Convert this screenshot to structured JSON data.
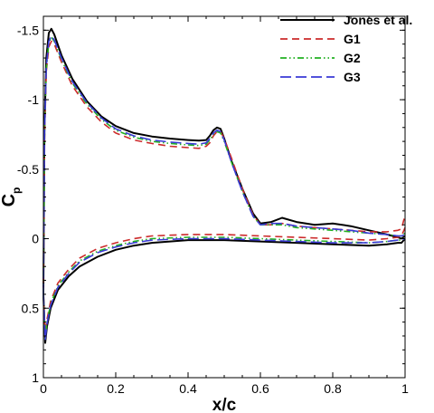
{
  "chart_data": {
    "type": "line",
    "title": "",
    "xlabel": "x/c",
    "ylabel": "C",
    "ylabel_subscript": "p",
    "xlim": [
      0,
      1
    ],
    "ylim": [
      1,
      -1.6
    ],
    "y_inverted": true,
    "grid": false,
    "legend_position": "top-right",
    "x_ticks": [
      {
        "value": 0,
        "label": "0"
      },
      {
        "value": 0.2,
        "label": "0.2"
      },
      {
        "value": 0.4,
        "label": "0.4"
      },
      {
        "value": 0.6,
        "label": "0.6"
      },
      {
        "value": 0.8,
        "label": "0.8"
      },
      {
        "value": 1,
        "label": "1"
      }
    ],
    "y_ticks": [
      {
        "value": -1.5,
        "label": "-1.5"
      },
      {
        "value": -1,
        "label": "-1"
      },
      {
        "value": -0.5,
        "label": "-0.5"
      },
      {
        "value": 0,
        "label": "0"
      },
      {
        "value": 0.5,
        "label": "0.5"
      },
      {
        "value": 1,
        "label": "1"
      }
    ],
    "series": [
      {
        "name": "Jones et al.",
        "color": "#000000",
        "dash": "solid",
        "upper": [
          [
            0,
            0.4
          ],
          [
            0.003,
            -0.8
          ],
          [
            0.008,
            -1.3
          ],
          [
            0.015,
            -1.48
          ],
          [
            0.022,
            -1.51
          ],
          [
            0.03,
            -1.47
          ],
          [
            0.05,
            -1.32
          ],
          [
            0.08,
            -1.15
          ],
          [
            0.12,
            -0.99
          ],
          [
            0.16,
            -0.88
          ],
          [
            0.2,
            -0.81
          ],
          [
            0.25,
            -0.76
          ],
          [
            0.3,
            -0.735
          ],
          [
            0.35,
            -0.72
          ],
          [
            0.4,
            -0.71
          ],
          [
            0.43,
            -0.705
          ],
          [
            0.45,
            -0.71
          ],
          [
            0.46,
            -0.74
          ],
          [
            0.47,
            -0.78
          ],
          [
            0.48,
            -0.8
          ],
          [
            0.49,
            -0.79
          ],
          [
            0.5,
            -0.72
          ],
          [
            0.52,
            -0.56
          ],
          [
            0.55,
            -0.36
          ],
          [
            0.58,
            -0.18
          ],
          [
            0.6,
            -0.11
          ],
          [
            0.63,
            -0.12
          ],
          [
            0.66,
            -0.15
          ],
          [
            0.7,
            -0.12
          ],
          [
            0.75,
            -0.1
          ],
          [
            0.8,
            -0.11
          ],
          [
            0.85,
            -0.09
          ],
          [
            0.9,
            -0.06
          ],
          [
            0.95,
            -0.03
          ],
          [
            0.98,
            -0.01
          ],
          [
            0.99,
            0.0
          ],
          [
            1.0,
            -0.02
          ]
        ],
        "lower": [
          [
            0,
            0.4
          ],
          [
            0.005,
            0.75
          ],
          [
            0.01,
            0.63
          ],
          [
            0.02,
            0.5
          ],
          [
            0.04,
            0.37
          ],
          [
            0.07,
            0.27
          ],
          [
            0.1,
            0.2
          ],
          [
            0.15,
            0.13
          ],
          [
            0.2,
            0.08
          ],
          [
            0.25,
            0.05
          ],
          [
            0.3,
            0.03
          ],
          [
            0.4,
            0.01
          ],
          [
            0.5,
            0.01
          ],
          [
            0.6,
            0.02
          ],
          [
            0.7,
            0.03
          ],
          [
            0.8,
            0.04
          ],
          [
            0.9,
            0.05
          ],
          [
            0.95,
            0.04
          ],
          [
            0.98,
            0.03
          ],
          [
            0.99,
            0.03
          ],
          [
            1.0,
            0.0
          ]
        ]
      },
      {
        "name": "G1",
        "color": "#cc2b2b",
        "dash": "dashed",
        "upper": [
          [
            0,
            0.4
          ],
          [
            0.003,
            -0.7
          ],
          [
            0.008,
            -1.2
          ],
          [
            0.015,
            -1.38
          ],
          [
            0.022,
            -1.42
          ],
          [
            0.03,
            -1.4
          ],
          [
            0.05,
            -1.27
          ],
          [
            0.08,
            -1.1
          ],
          [
            0.12,
            -0.95
          ],
          [
            0.16,
            -0.84
          ],
          [
            0.2,
            -0.76
          ],
          [
            0.25,
            -0.71
          ],
          [
            0.3,
            -0.685
          ],
          [
            0.35,
            -0.665
          ],
          [
            0.4,
            -0.655
          ],
          [
            0.43,
            -0.65
          ],
          [
            0.45,
            -0.665
          ],
          [
            0.46,
            -0.69
          ],
          [
            0.47,
            -0.74
          ],
          [
            0.48,
            -0.77
          ],
          [
            0.49,
            -0.77
          ],
          [
            0.5,
            -0.72
          ],
          [
            0.52,
            -0.58
          ],
          [
            0.55,
            -0.36
          ],
          [
            0.58,
            -0.17
          ],
          [
            0.6,
            -0.1
          ],
          [
            0.63,
            -0.1
          ],
          [
            0.66,
            -0.11
          ],
          [
            0.7,
            -0.09
          ],
          [
            0.75,
            -0.08
          ],
          [
            0.8,
            -0.07
          ],
          [
            0.85,
            -0.06
          ],
          [
            0.9,
            -0.05
          ],
          [
            0.95,
            -0.05
          ],
          [
            0.98,
            -0.06
          ],
          [
            0.99,
            -0.07
          ],
          [
            1.0,
            -0.17
          ]
        ],
        "lower": [
          [
            0,
            0.4
          ],
          [
            0.005,
            0.7
          ],
          [
            0.01,
            0.58
          ],
          [
            0.02,
            0.45
          ],
          [
            0.04,
            0.32
          ],
          [
            0.07,
            0.22
          ],
          [
            0.1,
            0.14
          ],
          [
            0.15,
            0.07
          ],
          [
            0.2,
            0.03
          ],
          [
            0.25,
            0.0
          ],
          [
            0.3,
            -0.02
          ],
          [
            0.4,
            -0.03
          ],
          [
            0.5,
            -0.03
          ],
          [
            0.6,
            -0.02
          ],
          [
            0.7,
            -0.01
          ],
          [
            0.8,
            0.0
          ],
          [
            0.9,
            0.01
          ],
          [
            0.95,
            0.0
          ],
          [
            0.98,
            -0.01
          ],
          [
            0.99,
            -0.02
          ],
          [
            1.0,
            -0.08
          ]
        ]
      },
      {
        "name": "G2",
        "color": "#22b022",
        "dash": "dashdotdot",
        "upper": [
          [
            0,
            0.4
          ],
          [
            0.003,
            -0.72
          ],
          [
            0.008,
            -1.22
          ],
          [
            0.015,
            -1.41
          ],
          [
            0.022,
            -1.45
          ],
          [
            0.03,
            -1.42
          ],
          [
            0.05,
            -1.29
          ],
          [
            0.08,
            -1.12
          ],
          [
            0.12,
            -0.97
          ],
          [
            0.16,
            -0.86
          ],
          [
            0.2,
            -0.78
          ],
          [
            0.25,
            -0.73
          ],
          [
            0.3,
            -0.7
          ],
          [
            0.35,
            -0.685
          ],
          [
            0.4,
            -0.675
          ],
          [
            0.43,
            -0.67
          ],
          [
            0.45,
            -0.68
          ],
          [
            0.46,
            -0.71
          ],
          [
            0.47,
            -0.75
          ],
          [
            0.48,
            -0.77
          ],
          [
            0.49,
            -0.76
          ],
          [
            0.5,
            -0.7
          ],
          [
            0.52,
            -0.55
          ],
          [
            0.55,
            -0.34
          ],
          [
            0.58,
            -0.16
          ],
          [
            0.6,
            -0.1
          ],
          [
            0.63,
            -0.1
          ],
          [
            0.66,
            -0.1
          ],
          [
            0.7,
            -0.08
          ],
          [
            0.75,
            -0.07
          ],
          [
            0.8,
            -0.06
          ],
          [
            0.85,
            -0.05
          ],
          [
            0.9,
            -0.04
          ],
          [
            0.95,
            -0.03
          ],
          [
            0.98,
            -0.02
          ],
          [
            0.99,
            -0.02
          ],
          [
            1.0,
            -0.04
          ]
        ],
        "lower": [
          [
            0,
            0.4
          ],
          [
            0.005,
            0.72
          ],
          [
            0.01,
            0.6
          ],
          [
            0.02,
            0.47
          ],
          [
            0.04,
            0.34
          ],
          [
            0.07,
            0.24
          ],
          [
            0.1,
            0.16
          ],
          [
            0.15,
            0.09
          ],
          [
            0.2,
            0.05
          ],
          [
            0.25,
            0.02
          ],
          [
            0.3,
            0.0
          ],
          [
            0.4,
            -0.01
          ],
          [
            0.5,
            -0.01
          ],
          [
            0.6,
            0.0
          ],
          [
            0.7,
            0.01
          ],
          [
            0.8,
            0.02
          ],
          [
            0.9,
            0.03
          ],
          [
            0.95,
            0.02
          ],
          [
            0.98,
            0.01
          ],
          [
            0.99,
            0.01
          ],
          [
            1.0,
            -0.01
          ]
        ]
      },
      {
        "name": "G3",
        "color": "#3a3ad6",
        "dash": "longdash",
        "upper": [
          [
            0,
            0.4
          ],
          [
            0.003,
            -0.74
          ],
          [
            0.008,
            -1.24
          ],
          [
            0.015,
            -1.42
          ],
          [
            0.022,
            -1.46
          ],
          [
            0.03,
            -1.43
          ],
          [
            0.05,
            -1.3
          ],
          [
            0.08,
            -1.13
          ],
          [
            0.12,
            -0.98
          ],
          [
            0.16,
            -0.87
          ],
          [
            0.2,
            -0.79
          ],
          [
            0.25,
            -0.74
          ],
          [
            0.3,
            -0.71
          ],
          [
            0.35,
            -0.695
          ],
          [
            0.4,
            -0.685
          ],
          [
            0.43,
            -0.68
          ],
          [
            0.45,
            -0.69
          ],
          [
            0.46,
            -0.72
          ],
          [
            0.47,
            -0.76
          ],
          [
            0.48,
            -0.78
          ],
          [
            0.49,
            -0.77
          ],
          [
            0.5,
            -0.71
          ],
          [
            0.52,
            -0.55
          ],
          [
            0.55,
            -0.34
          ],
          [
            0.58,
            -0.16
          ],
          [
            0.6,
            -0.1
          ],
          [
            0.63,
            -0.11
          ],
          [
            0.66,
            -0.11
          ],
          [
            0.7,
            -0.09
          ],
          [
            0.75,
            -0.08
          ],
          [
            0.8,
            -0.07
          ],
          [
            0.85,
            -0.06
          ],
          [
            0.9,
            -0.04
          ],
          [
            0.95,
            -0.03
          ],
          [
            0.98,
            -0.02
          ],
          [
            0.99,
            -0.02
          ],
          [
            1.0,
            -0.03
          ]
        ],
        "lower": [
          [
            0,
            0.4
          ],
          [
            0.005,
            0.73
          ],
          [
            0.01,
            0.61
          ],
          [
            0.02,
            0.48
          ],
          [
            0.04,
            0.35
          ],
          [
            0.07,
            0.25
          ],
          [
            0.1,
            0.17
          ],
          [
            0.15,
            0.1
          ],
          [
            0.2,
            0.06
          ],
          [
            0.25,
            0.03
          ],
          [
            0.3,
            0.01
          ],
          [
            0.4,
            0.0
          ],
          [
            0.5,
            0.0
          ],
          [
            0.6,
            0.01
          ],
          [
            0.7,
            0.02
          ],
          [
            0.8,
            0.03
          ],
          [
            0.9,
            0.03
          ],
          [
            0.95,
            0.02
          ],
          [
            0.98,
            0.01
          ],
          [
            0.99,
            0.01
          ],
          [
            1.0,
            0.0
          ]
        ]
      }
    ]
  }
}
